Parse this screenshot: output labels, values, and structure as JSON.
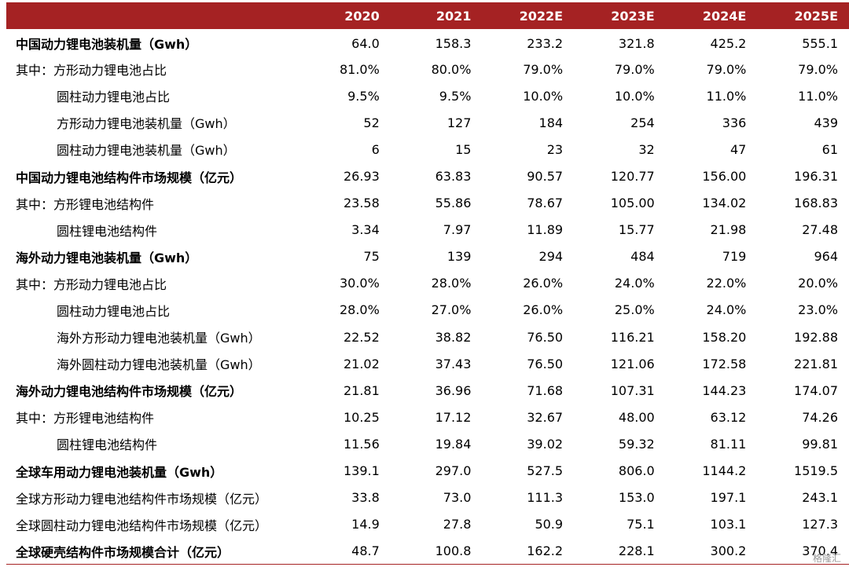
{
  "table": {
    "header_label": "",
    "years": [
      "2020",
      "2021",
      "2022E",
      "2023E",
      "2024E",
      "2025E"
    ],
    "rows": [
      {
        "label": "中国动力锂电池装机量（Gwh）",
        "bold": true,
        "indent": 0,
        "values": [
          "64.0",
          "158.3",
          "233.2",
          "321.8",
          "425.2",
          "555.1"
        ]
      },
      {
        "label": "其中：方形动力锂电池占比",
        "bold": false,
        "indent": 1,
        "values": [
          "81.0%",
          "80.0%",
          "79.0%",
          "79.0%",
          "79.0%",
          "79.0%"
        ]
      },
      {
        "label": "圆柱动力锂电池占比",
        "bold": false,
        "indent": 2,
        "values": [
          "9.5%",
          "9.5%",
          "10.0%",
          "10.0%",
          "11.0%",
          "11.0%"
        ]
      },
      {
        "label": "方形动力锂电池装机量（Gwh）",
        "bold": false,
        "indent": 2,
        "values": [
          "52",
          "127",
          "184",
          "254",
          "336",
          "439"
        ]
      },
      {
        "label": "圆柱动力锂电池装机量（Gwh）",
        "bold": false,
        "indent": 2,
        "values": [
          "6",
          "15",
          "23",
          "32",
          "47",
          "61"
        ]
      },
      {
        "label": "中国动力锂电池结构件市场规模（亿元）",
        "bold": true,
        "indent": 0,
        "values": [
          "26.93",
          "63.83",
          "90.57",
          "120.77",
          "156.00",
          "196.31"
        ]
      },
      {
        "label": "其中：方形锂电池结构件",
        "bold": false,
        "indent": 1,
        "values": [
          "23.58",
          "55.86",
          "78.67",
          "105.00",
          "134.02",
          "168.83"
        ]
      },
      {
        "label": "圆柱锂电池结构件",
        "bold": false,
        "indent": 2,
        "values": [
          "3.34",
          "7.97",
          "11.89",
          "15.77",
          "21.98",
          "27.48"
        ]
      },
      {
        "label": "海外动力锂电池装机量（Gwh）",
        "bold": true,
        "indent": 0,
        "values": [
          "75",
          "139",
          "294",
          "484",
          "719",
          "964"
        ]
      },
      {
        "label": "其中：方形动力锂电池占比",
        "bold": false,
        "indent": 1,
        "values": [
          "30.0%",
          "28.0%",
          "26.0%",
          "24.0%",
          "22.0%",
          "20.0%"
        ]
      },
      {
        "label": "圆柱动力锂电池占比",
        "bold": false,
        "indent": 2,
        "values": [
          "28.0%",
          "27.0%",
          "26.0%",
          "25.0%",
          "24.0%",
          "23.0%"
        ]
      },
      {
        "label": "海外方形动力锂电池装机量（Gwh）",
        "bold": false,
        "indent": 2,
        "values": [
          "22.52",
          "38.82",
          "76.50",
          "116.21",
          "158.20",
          "192.88"
        ]
      },
      {
        "label": "海外圆柱动力锂电池装机量（Gwh）",
        "bold": false,
        "indent": 2,
        "values": [
          "21.02",
          "37.43",
          "76.50",
          "121.06",
          "172.58",
          "221.81"
        ]
      },
      {
        "label": "海外动力锂电池结构件市场规模（亿元）",
        "bold": true,
        "indent": 0,
        "values": [
          "21.81",
          "36.96",
          "71.68",
          "107.31",
          "144.23",
          "174.07"
        ]
      },
      {
        "label": "其中：方形锂电池结构件",
        "bold": false,
        "indent": 1,
        "values": [
          "10.25",
          "17.12",
          "32.67",
          "48.00",
          "63.12",
          "74.26"
        ]
      },
      {
        "label": "圆柱锂电池结构件",
        "bold": false,
        "indent": 2,
        "values": [
          "11.56",
          "19.84",
          "39.02",
          "59.32",
          "81.11",
          "99.81"
        ]
      },
      {
        "label": "全球车用动力锂电池装机量（Gwh）",
        "bold": true,
        "indent": 0,
        "values": [
          "139.1",
          "297.0",
          "527.5",
          "806.0",
          "1144.2",
          "1519.5"
        ]
      },
      {
        "label": "全球方形动力锂电池结构件市场规模（亿元）",
        "bold": false,
        "indent": 0,
        "values": [
          "33.8",
          "73.0",
          "111.3",
          "153.0",
          "197.1",
          "243.1"
        ]
      },
      {
        "label": "全球圆柱动力锂电池结构件市场规模（亿元）",
        "bold": false,
        "indent": 0,
        "values": [
          "14.9",
          "27.8",
          "50.9",
          "75.1",
          "103.1",
          "127.3"
        ]
      },
      {
        "label": "全球硬壳结构件市场规模合计（亿元）",
        "bold": true,
        "indent": 0,
        "values": [
          "48.7",
          "100.8",
          "162.2",
          "228.1",
          "300.2",
          "370.4"
        ]
      }
    ]
  },
  "colors": {
    "header_bg": "#a52223",
    "header_text": "#ffffff"
  },
  "watermark": "格隆汇"
}
